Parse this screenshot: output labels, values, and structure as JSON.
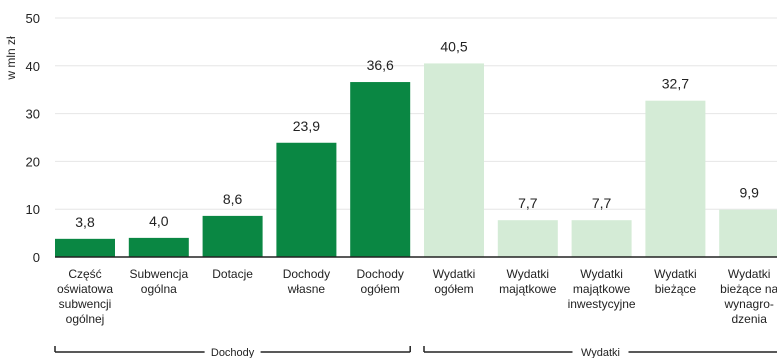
{
  "chart_data": {
    "type": "bar",
    "ylabel": "w mln zł",
    "ylim": [
      0,
      50
    ],
    "yticks": [
      0,
      10,
      20,
      30,
      40,
      50
    ],
    "grid": true,
    "categories": [
      [
        "Część",
        "oświatowa",
        "subwencji",
        "ogólnej"
      ],
      [
        "Subwencja",
        "ogólna"
      ],
      [
        "Dotacje"
      ],
      [
        "Dochody",
        "własne"
      ],
      [
        "Dochody",
        "ogółem"
      ],
      [
        "Wydatki",
        "ogółem"
      ],
      [
        "Wydatki",
        "majątkowe"
      ],
      [
        "Wydatki",
        "majątkowe",
        "inwestycyjne"
      ],
      [
        "Wydatki",
        "bieżące"
      ],
      [
        "Wydatki",
        "bieżące na",
        "wynagro-",
        "dzenia"
      ]
    ],
    "values": [
      3.8,
      4.0,
      8.6,
      23.9,
      36.6,
      40.5,
      7.7,
      7.7,
      32.7,
      9.9
    ],
    "value_labels": [
      "3,8",
      "4,0",
      "8,6",
      "23,9",
      "36,6",
      "40,5",
      "7,7",
      "7,7",
      "32,7",
      "9,9"
    ],
    "groups": [
      {
        "name": "Dochody",
        "range": [
          0,
          4
        ],
        "color": "#0a8743"
      },
      {
        "name": "Wydatki",
        "range": [
          5,
          9
        ],
        "color": "#d4ebd6"
      }
    ]
  }
}
